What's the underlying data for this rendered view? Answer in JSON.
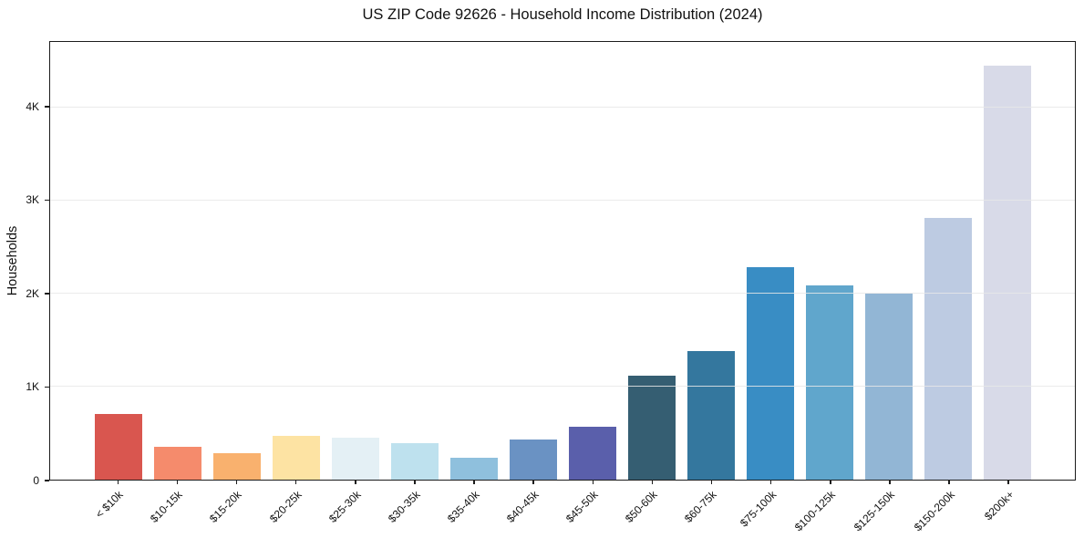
{
  "chart_data": {
    "type": "bar",
    "title": "US ZIP Code 92626 - Household Income Distribution (2024)",
    "xlabel": "",
    "ylabel": "Households",
    "categories": [
      "< $10k",
      "$10-15k",
      "$15-20k",
      "$20-25k",
      "$25-30k",
      "$30-35k",
      "$35-40k",
      "$40-45k",
      "$45-50k",
      "$50-60k",
      "$60-75k",
      "$75-100k",
      "$100-125k",
      "$125-150k",
      "$150-200k",
      "$200k+"
    ],
    "values": [
      710,
      350,
      280,
      475,
      450,
      390,
      235,
      430,
      565,
      1115,
      1385,
      2280,
      2085,
      2000,
      2810,
      4450
    ],
    "bar_colors": [
      "#d9564f",
      "#f58b6c",
      "#f9b16e",
      "#fde3a3",
      "#e4f0f5",
      "#bee1ee",
      "#8fc0dd",
      "#6a92c3",
      "#5a5fab",
      "#355e72",
      "#34779e",
      "#398dc4",
      "#60a6cc",
      "#92b6d5",
      "#bdcbe2",
      "#d8dae8"
    ],
    "ylim": [
      0,
      4700
    ],
    "yticks": [
      {
        "value": 0,
        "label": "0"
      },
      {
        "value": 1000,
        "label": "1K"
      },
      {
        "value": 2000,
        "label": "2K"
      },
      {
        "value": 3000,
        "label": "3K"
      },
      {
        "value": 4000,
        "label": "4K"
      }
    ],
    "grid": "horizontal",
    "legend": "none",
    "colors": {
      "grid_color": "#e7e7e7",
      "spine_color": "#1c1c1c",
      "background": "#ffffff",
      "text_color": "#111111"
    }
  }
}
